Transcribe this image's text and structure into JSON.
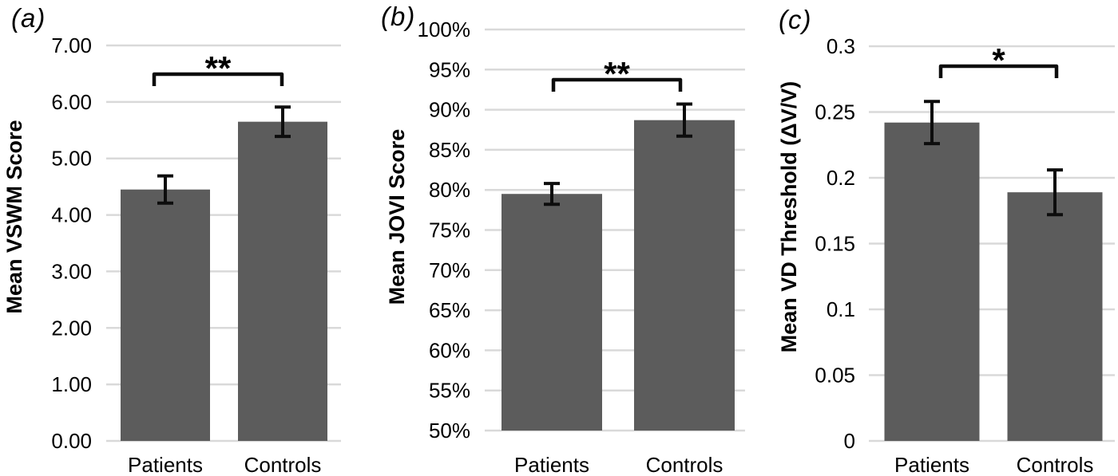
{
  "figure_caption": "Three-panel bar figure comparing Patients vs Controls",
  "colors": {
    "bar": "#5c5c5c",
    "gridline": "#d9d9d9",
    "error_bar": "#0d0d0d",
    "bracket": "#0d0d0d",
    "text": "#000000",
    "background": "#ffffff"
  },
  "chart_data": [
    {
      "type": "bar",
      "panel_label": "(a)",
      "title": "",
      "xlabel": "",
      "ylabel": "Mean VSWM Score",
      "categories": [
        "Patients",
        "Controls"
      ],
      "values": [
        4.45,
        5.65
      ],
      "error_bars": [
        0.24,
        0.26
      ],
      "ylim": [
        0,
        7
      ],
      "ytick_labels": [
        "0.00",
        "1.00",
        "2.00",
        "3.00",
        "4.00",
        "5.00",
        "6.00",
        "7.00"
      ],
      "grid": true,
      "legend": "none",
      "significance": "**"
    },
    {
      "type": "bar",
      "panel_label": "(b)",
      "title": "",
      "xlabel": "",
      "ylabel": "Mean JOVI Score",
      "categories": [
        "Patients",
        "Controls"
      ],
      "values": [
        79.5,
        88.7
      ],
      "error_bars": [
        1.3,
        2.0
      ],
      "ylim": [
        50,
        100
      ],
      "ytick_labels": [
        "50%",
        "55%",
        "60%",
        "65%",
        "70%",
        "75%",
        "80%",
        "85%",
        "90%",
        "95%",
        "100%"
      ],
      "grid": true,
      "legend": "none",
      "significance": "**"
    },
    {
      "type": "bar",
      "panel_label": "(c)",
      "title": "",
      "xlabel": "",
      "ylabel": "Mean VD Threshold (ΔV/V)",
      "categories": [
        "Patients",
        "Controls"
      ],
      "values": [
        0.242,
        0.189
      ],
      "error_bars": [
        0.016,
        0.017
      ],
      "ylim": [
        0,
        0.3
      ],
      "ytick_labels": [
        "0",
        "0.05",
        "0.1",
        "0.15",
        "0.2",
        "0.25",
        "0.3"
      ],
      "grid": true,
      "legend": "none",
      "significance": "*"
    }
  ]
}
